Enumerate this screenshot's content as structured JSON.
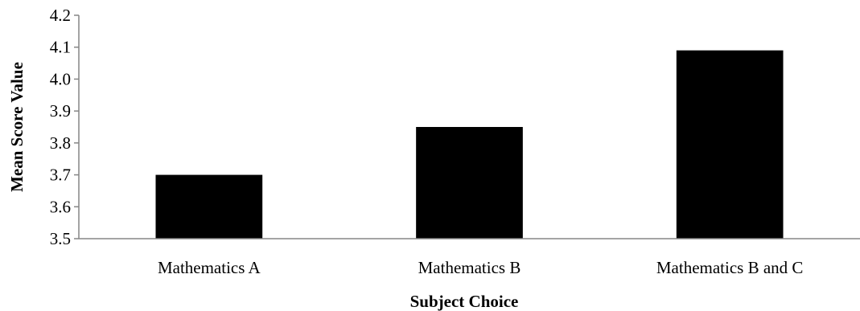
{
  "chart_data": {
    "type": "bar",
    "categories": [
      "Mathematics A",
      "Mathematics B",
      "Mathematics B and C"
    ],
    "values": [
      3.7,
      3.85,
      4.09
    ],
    "xlabel": "Subject Choice",
    "ylabel": "Mean Score Value",
    "ylim": [
      3.5,
      4.2
    ],
    "yticks": [
      "3.5",
      "3.6",
      "3.7",
      "3.8",
      "3.9",
      "4.0",
      "4.1",
      "4.2"
    ],
    "grid": false,
    "bar_color": "#000000",
    "axis_color": "#868686"
  }
}
